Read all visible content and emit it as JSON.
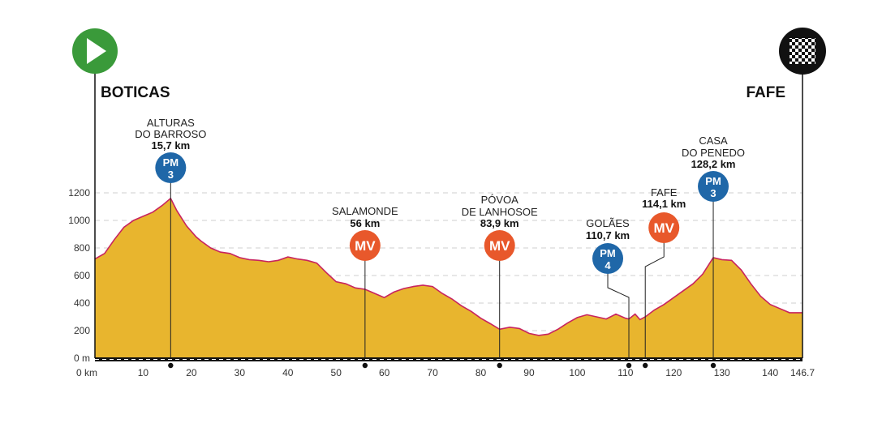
{
  "chart_data": {
    "type": "area",
    "xlabel": "",
    "ylabel": "",
    "x_ticks": [
      "0 km",
      "10",
      "20",
      "30",
      "40",
      "50",
      "60",
      "70",
      "80",
      "90",
      "100",
      "110",
      "120",
      "130",
      "140",
      "146.7"
    ],
    "y_ticks": [
      "0 m",
      "200",
      "400",
      "600",
      "800",
      "1000",
      "1200"
    ],
    "xlim": [
      0,
      146.7
    ],
    "ylim": [
      0,
      1200
    ],
    "grid": "horizontal-dashed",
    "start": {
      "name": "BOTICAS"
    },
    "finish": {
      "name": "FAFE"
    },
    "colors": {
      "fill": "#e8b52e",
      "line": "#c8245e",
      "pm": "#1f67a8",
      "mv": "#e8582b",
      "start": "#3a9a3a",
      "finish": "#111111"
    },
    "profile": [
      [
        0,
        720
      ],
      [
        2,
        760
      ],
      [
        4,
        860
      ],
      [
        6,
        950
      ],
      [
        8,
        1000
      ],
      [
        10,
        1030
      ],
      [
        12,
        1060
      ],
      [
        14,
        1110
      ],
      [
        15.7,
        1160
      ],
      [
        17,
        1070
      ],
      [
        19,
        960
      ],
      [
        21,
        880
      ],
      [
        22,
        850
      ],
      [
        24,
        800
      ],
      [
        26,
        770
      ],
      [
        28,
        760
      ],
      [
        30,
        730
      ],
      [
        32,
        715
      ],
      [
        34,
        710
      ],
      [
        36,
        700
      ],
      [
        38,
        710
      ],
      [
        40,
        735
      ],
      [
        42,
        720
      ],
      [
        44,
        710
      ],
      [
        46,
        690
      ],
      [
        48,
        620
      ],
      [
        50,
        555
      ],
      [
        52,
        540
      ],
      [
        54,
        510
      ],
      [
        56,
        500
      ],
      [
        58,
        470
      ],
      [
        60,
        440
      ],
      [
        62,
        480
      ],
      [
        64,
        505
      ],
      [
        66,
        520
      ],
      [
        68,
        530
      ],
      [
        70,
        520
      ],
      [
        72,
        470
      ],
      [
        74,
        430
      ],
      [
        76,
        380
      ],
      [
        78,
        340
      ],
      [
        80,
        290
      ],
      [
        82,
        250
      ],
      [
        83.9,
        210
      ],
      [
        86,
        225
      ],
      [
        88,
        215
      ],
      [
        90,
        180
      ],
      [
        92,
        165
      ],
      [
        94,
        175
      ],
      [
        96,
        210
      ],
      [
        98,
        255
      ],
      [
        100,
        295
      ],
      [
        102,
        315
      ],
      [
        104,
        300
      ],
      [
        106,
        285
      ],
      [
        108,
        320
      ],
      [
        110,
        290
      ],
      [
        110.7,
        285
      ],
      [
        112,
        320
      ],
      [
        113,
        280
      ],
      [
        114.1,
        300
      ],
      [
        116,
        350
      ],
      [
        118,
        390
      ],
      [
        120,
        440
      ],
      [
        122,
        490
      ],
      [
        124,
        540
      ],
      [
        126,
        610
      ],
      [
        128.2,
        730
      ],
      [
        130,
        715
      ],
      [
        132,
        710
      ],
      [
        134,
        640
      ],
      [
        136,
        540
      ],
      [
        138,
        450
      ],
      [
        140,
        390
      ],
      [
        142,
        360
      ],
      [
        144,
        330
      ],
      [
        146.7,
        330
      ]
    ],
    "checkpoints": [
      {
        "name1": "ALTURAS",
        "name2": "DO BARROSO",
        "km": "15,7 km",
        "x": 15.7,
        "type": "PM",
        "cat": "3"
      },
      {
        "name1": "SALAMONDE",
        "name2": "",
        "km": "56 km",
        "x": 56,
        "type": "MV",
        "cat": ""
      },
      {
        "name1": "PÓVOA",
        "name2": "DE LANHOSOE",
        "km": "83,9 km",
        "x": 83.9,
        "type": "MV",
        "cat": ""
      },
      {
        "name1": "GOLÃES",
        "name2": "",
        "km": "110,7 km",
        "x": 110.7,
        "type": "PM",
        "cat": "4"
      },
      {
        "name1": "FAFE",
        "name2": "",
        "km": "114,1 km",
        "x": 114.1,
        "type": "MV",
        "cat": ""
      },
      {
        "name1": "CASA",
        "name2": "DO PENEDO",
        "km": "128,2 km",
        "x": 128.2,
        "type": "PM",
        "cat": "3"
      }
    ]
  }
}
